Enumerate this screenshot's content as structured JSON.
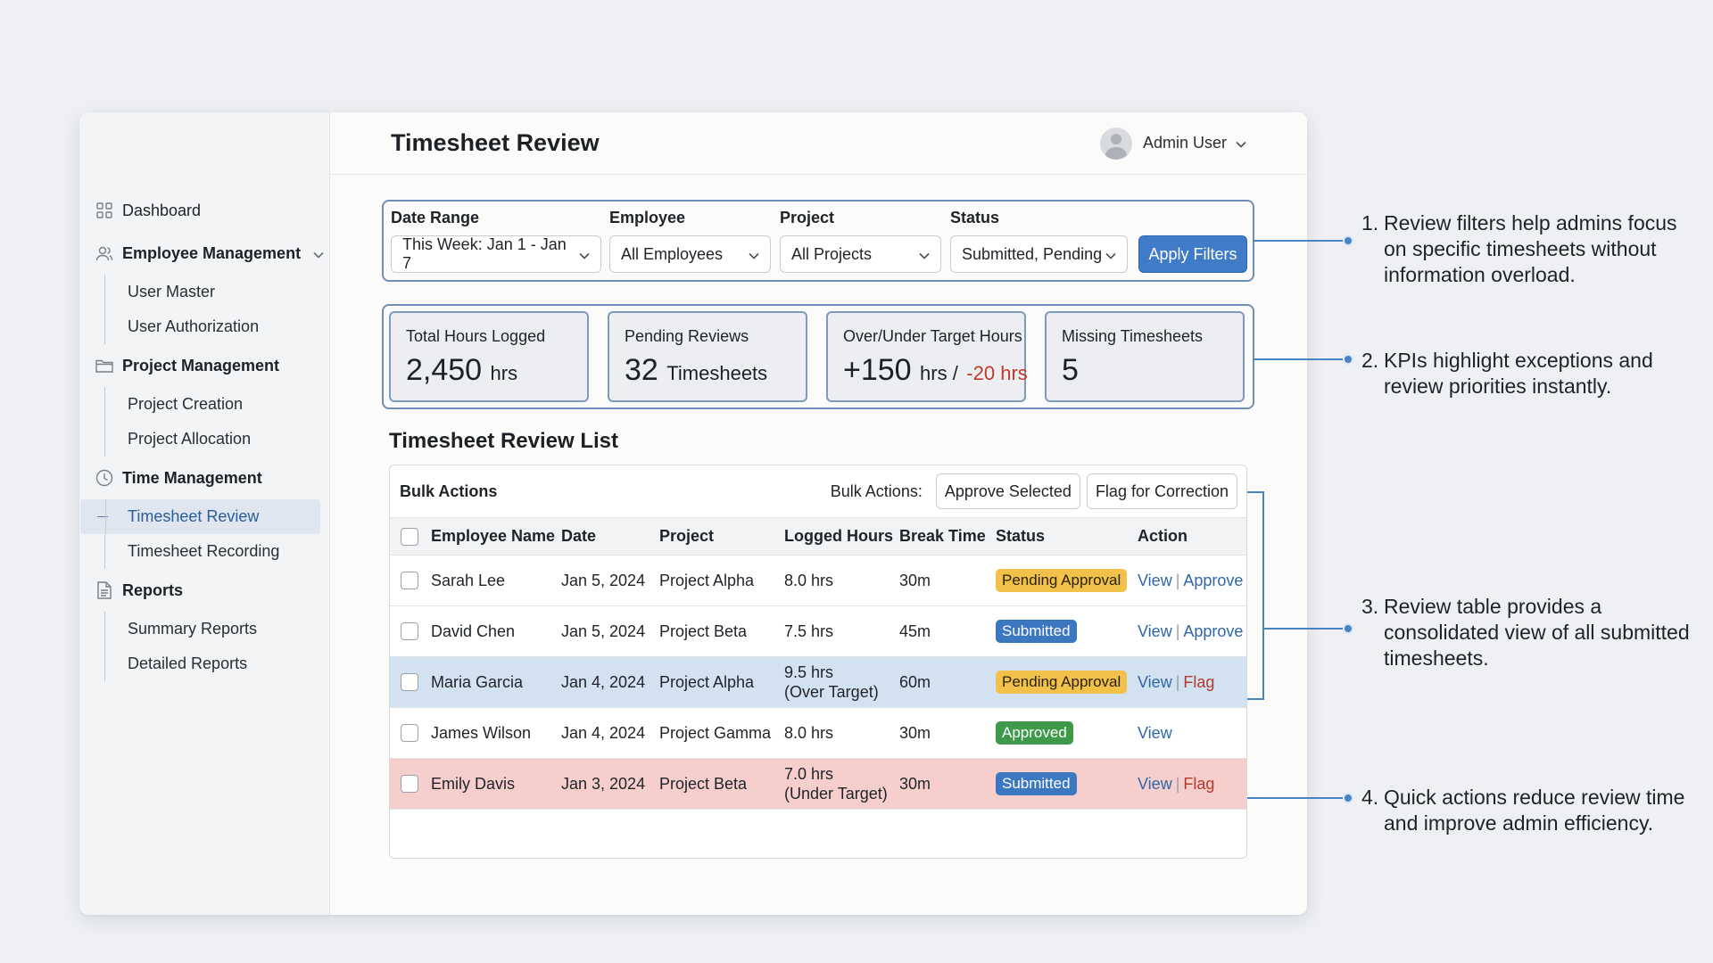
{
  "sidebar": {
    "dashboard": "Dashboard",
    "employee_management": "Employee Management",
    "user_master": "User Master",
    "user_authorization": "User Authorization",
    "project_management": "Project Management",
    "project_creation": "Project Creation",
    "project_allocation": "Project Allocation",
    "time_management": "Time Management",
    "timesheet_review": "Timesheet Review",
    "timesheet_recording": "Timesheet Recording",
    "reports": "Reports",
    "summary_reports": "Summary Reports",
    "detailed_reports": "Detailed Reports"
  },
  "header": {
    "title": "Timesheet Review",
    "user": "Admin User"
  },
  "filters": {
    "date_range_label": "Date Range",
    "date_range_value": "This Week: Jan 1 - Jan 7",
    "employee_label": "Employee",
    "employee_value": "All Employees",
    "project_label": "Project",
    "project_value": "All Projects",
    "status_label": "Status",
    "status_value": "Submitted, Pending",
    "apply": "Apply Filters"
  },
  "kpis": {
    "total_label": "Total Hours Logged",
    "total_value": "2,450",
    "total_unit": "hrs",
    "pending_label": "Pending Reviews",
    "pending_value": "32",
    "pending_unit": "Timesheets",
    "target_label": "Over/Under Target Hours",
    "target_over": "+150",
    "target_unit": "hrs /",
    "target_under": "-20 hrs",
    "missing_label": "Missing Timesheets",
    "missing_value": "5"
  },
  "list": {
    "title": "Timesheet Review List",
    "bulk_title": "Bulk Actions",
    "bulk_label": "Bulk Actions:",
    "approve_selected": "Approve Selected",
    "flag_correction": "Flag for Correction",
    "columns": [
      "Employee Name",
      "Date",
      "Project",
      "Logged Hours",
      "Break Time",
      "Status",
      "Action"
    ],
    "rows": [
      {
        "name": "Sarah Lee",
        "date": "Jan 5, 2024",
        "project": "Project Alpha",
        "hours": "8.0 hrs",
        "hours_note": "",
        "break": "30m",
        "status": "Pending Approval",
        "action1": "View",
        "action2": "Approve"
      },
      {
        "name": "David Chen",
        "date": "Jan 5, 2024",
        "project": "Project Beta",
        "hours": "7.5 hrs",
        "hours_note": "",
        "break": "45m",
        "status": "Submitted",
        "action1": "View",
        "action2": "Approve"
      },
      {
        "name": "Maria Garcia",
        "date": "Jan 4, 2024",
        "project": "Project Alpha",
        "hours": "9.5 hrs",
        "hours_note": "(Over Target)",
        "break": "60m",
        "status": "Pending Approval",
        "action1": "View",
        "action2": "Flag"
      },
      {
        "name": "James Wilson",
        "date": "Jan 4, 2024",
        "project": "Project Gamma",
        "hours": "8.0 hrs",
        "hours_note": "",
        "break": "30m",
        "status": "Approved",
        "action1": "View",
        "action2": ""
      },
      {
        "name": "Emily Davis",
        "date": "Jan 3, 2024",
        "project": "Project Beta",
        "hours": "7.0 hrs",
        "hours_note": "(Under Target)",
        "break": "30m",
        "status": "Submitted",
        "action1": "View",
        "action2": "Flag"
      }
    ]
  },
  "annotations": {
    "n1": "1.",
    "t1": "Review filters help admins focus on specific timesheets without information overload.",
    "n2": "2.",
    "t2": "KPIs highlight exceptions and review priorities instantly.",
    "n3": "3.",
    "t3": "Review table provides a consolidated view of all submitted timesheets.",
    "n4": "4.",
    "t4": "Quick actions reduce review time and improve admin efficiency."
  },
  "colors": {
    "accent": "#3f7bc6",
    "pending": "#f2c14a",
    "approved": "#3e9a4a",
    "flag": "#b03a2e",
    "row_over": "#d3e2f1",
    "row_under": "#f6cfcd"
  }
}
